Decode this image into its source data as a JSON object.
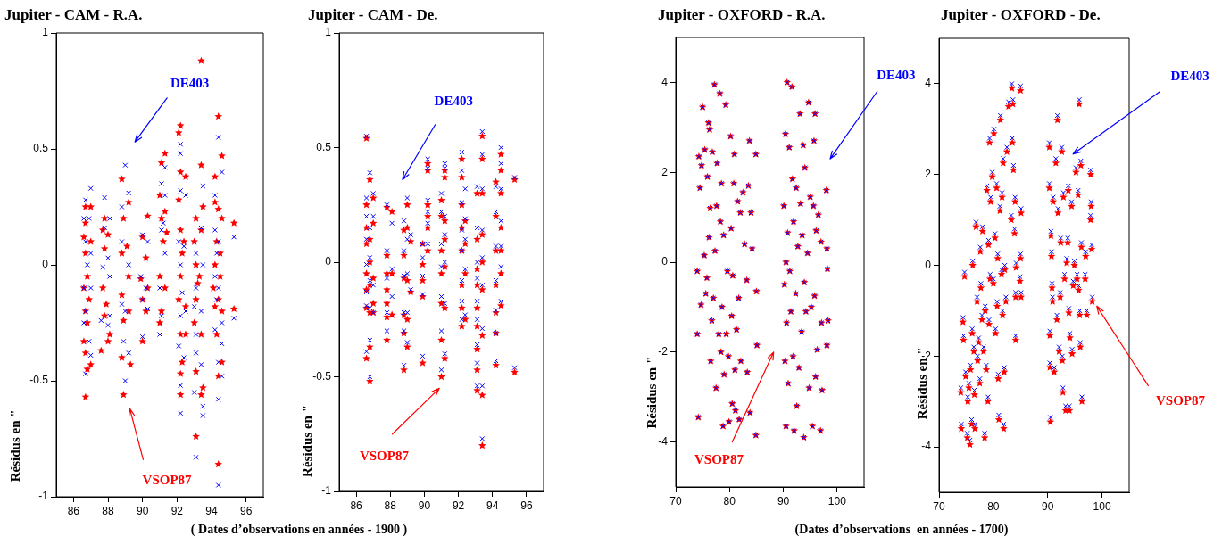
{
  "chart_data": [
    {
      "type": "scatter",
      "title": "Jupiter - CAM - R.A.",
      "ylabel": "Résidus en \"",
      "xlabel": "( Dates d’observations en années - 1900 )",
      "xlim": [
        85,
        97
      ],
      "xticks": [
        86,
        88,
        90,
        92,
        94,
        96
      ],
      "ylim": [
        -1,
        1
      ],
      "yticks": [
        -1,
        -0.5,
        0,
        0.5,
        1
      ],
      "grid": false,
      "legend": false,
      "series": [
        {
          "name": "DE403",
          "color": "#0000ff",
          "marker": "cross",
          "x": [
            86.7,
            86.6,
            86.7,
            86.8,
            86.6,
            86.7,
            86.6,
            86.7,
            87.0,
            86.9,
            87.0,
            87.0,
            86.9,
            87.0,
            87.8,
            87.8,
            87.7,
            87.6,
            88.1,
            88.0,
            88.1,
            88.1,
            88.0,
            88.8,
            88.8,
            88.8,
            88.9,
            89.0,
            89.0,
            89.0,
            89.2,
            89.2,
            89.2,
            90.0,
            89.9,
            90.0,
            90.0,
            90.3,
            90.2,
            90.3,
            91.1,
            91.1,
            91.0,
            91.1,
            91.0,
            91.3,
            91.3,
            91.2,
            91.3,
            92.2,
            92.2,
            92.2,
            92.1,
            92.2,
            92.3,
            92.2,
            92.1,
            92.2,
            92.2,
            92.5,
            92.4,
            92.5,
            92.4,
            93.1,
            93.1,
            93.0,
            93.1,
            93.1,
            93.0,
            93.1,
            93.5,
            93.4,
            93.5,
            93.4,
            93.4,
            93.5,
            93.5,
            94.2,
            94.2,
            94.3,
            94.2,
            94.3,
            94.2,
            94.4,
            94.4,
            94.4,
            94.4,
            94.4,
            94.4,
            94.6,
            94.6,
            94.6,
            94.6,
            95.3,
            95.3
          ],
          "values": [
            0.28,
            0.2,
            0.1,
            0.0,
            -0.1,
            -0.2,
            -0.25,
            -0.47,
            0.33,
            0.2,
            0.05,
            -0.1,
            -0.33,
            -0.39,
            0.29,
            0.16,
            -0.01,
            -0.24,
            0.2,
            0.03,
            -0.05,
            -0.22,
            -0.26,
            0.25,
            0.1,
            -0.17,
            -0.33,
            0.43,
            -0.2,
            -0.5,
            0.31,
            0.0,
            -0.38,
            0.13,
            -0.05,
            -0.15,
            -0.31,
            0.1,
            -0.1,
            -0.19,
            0.35,
            0.15,
            -0.1,
            -0.22,
            -0.3,
            0.42,
            0.3,
            0.18,
            0.05,
            0.52,
            0.48,
            0.32,
            0.1,
            0.0,
            -0.12,
            -0.22,
            -0.35,
            -0.52,
            -0.64,
            0.3,
            0.08,
            -0.2,
            -0.4,
            0.05,
            -0.1,
            -0.18,
            -0.3,
            -0.38,
            -0.55,
            -0.83,
            0.34,
            0.16,
            0.0,
            -0.2,
            -0.43,
            -0.61,
            -0.65,
            0.3,
            0.15,
            0.05,
            -0.05,
            -0.15,
            -0.28,
            0.55,
            0.1,
            -0.1,
            -0.42,
            -0.58,
            -0.95,
            0.4,
            -0.25,
            -0.34,
            -0.48,
            0.12,
            -0.23
          ]
        },
        {
          "name": "VSOP87",
          "color": "#ff0000",
          "marker": "star",
          "x": [
            86.7,
            86.7,
            86.6,
            86.7,
            86.8,
            86.6,
            86.7,
            86.8,
            86.6,
            86.7,
            86.8,
            86.7,
            87.0,
            87.0,
            86.9,
            87.0,
            87.8,
            87.7,
            87.8,
            87.7,
            87.9,
            87.8,
            87.6,
            88.0,
            88.1,
            88.0,
            88.8,
            88.9,
            88.8,
            88.8,
            88.9,
            88.8,
            88.9,
            89.2,
            89.1,
            89.2,
            89.2,
            89.3,
            90.0,
            89.9,
            90.0,
            90.0,
            90.3,
            90.2,
            90.3,
            90.2,
            91.1,
            91.0,
            91.1,
            91.2,
            91.0,
            91.1,
            91.0,
            91.3,
            91.3,
            91.4,
            91.3,
            92.2,
            92.1,
            92.2,
            92.1,
            92.2,
            92.3,
            92.2,
            92.1,
            92.2,
            92.3,
            92.2,
            92.2,
            92.5,
            92.4,
            92.5,
            92.5,
            93.1,
            93.0,
            93.1,
            93.2,
            93.1,
            93.0,
            93.1,
            93.1,
            93.4,
            93.4,
            93.5,
            93.4,
            93.3,
            93.4,
            93.5,
            93.4,
            94.2,
            94.2,
            94.3,
            94.2,
            94.1,
            94.2,
            94.3,
            94.4,
            94.4,
            94.5,
            94.4,
            94.4,
            94.4,
            94.6,
            94.6,
            94.5,
            94.6,
            94.6,
            95.3,
            95.3
          ],
          "values": [
            0.25,
            0.18,
            0.12,
            0.05,
            -0.05,
            -0.1,
            -0.2,
            -0.25,
            -0.33,
            -0.38,
            -0.45,
            -0.57,
            0.25,
            0.1,
            -0.15,
            -0.43,
            0.2,
            0.15,
            0.07,
            -0.1,
            -0.17,
            -0.22,
            -0.37,
            0.13,
            -0.3,
            -0.33,
            0.37,
            0.2,
            0.05,
            -0.13,
            -0.24,
            -0.4,
            -0.56,
            0.27,
            0.08,
            -0.05,
            -0.2,
            -0.43,
            0.12,
            -0.06,
            -0.15,
            -0.33,
            0.21,
            0.03,
            -0.1,
            -0.2,
            0.44,
            0.3,
            0.2,
            0.1,
            -0.05,
            -0.2,
            -0.25,
            0.48,
            0.23,
            0.14,
            -0.1,
            0.6,
            0.57,
            0.4,
            0.28,
            0.15,
            0.05,
            -0.05,
            -0.15,
            -0.3,
            -0.42,
            -0.47,
            -0.56,
            0.38,
            0.1,
            -0.18,
            -0.3,
            0.2,
            0.1,
            0.0,
            -0.08,
            -0.15,
            -0.25,
            -0.46,
            -0.74,
            0.88,
            0.43,
            0.25,
            0.15,
            -0.05,
            -0.3,
            -0.53,
            -0.56,
            0.38,
            0.27,
            0.1,
            0.0,
            -0.1,
            -0.18,
            -0.3,
            0.64,
            0.24,
            0.05,
            -0.15,
            -0.48,
            -0.86,
            0.47,
            0.2,
            -0.05,
            -0.2,
            -0.42,
            0.18,
            -0.19
          ]
        }
      ]
    },
    {
      "type": "scatter",
      "title": "Jupiter - CAM - De.",
      "ylabel": "Résidus en \"",
      "xlim": [
        85,
        97
      ],
      "xticks": [
        86,
        88,
        90,
        92,
        94,
        96
      ],
      "ylim": [
        -1,
        1
      ],
      "yticks": [
        -1,
        -0.5,
        0,
        0.5,
        1
      ],
      "grid": false,
      "legend": false,
      "series": [
        {
          "name": "DE403",
          "color": "#0000ff",
          "marker": "cross",
          "x": [
            86.6,
            86.6,
            86.6,
            86.6,
            86.6,
            86.6,
            86.6,
            86.6,
            86.8,
            86.8,
            86.8,
            86.8,
            86.8,
            86.8,
            86.8,
            87.0,
            87.0,
            87.0,
            87.0,
            87.8,
            87.8,
            87.8,
            87.8,
            87.8,
            88.1,
            88.1,
            88.1,
            88.8,
            88.8,
            88.8,
            88.8,
            88.8,
            88.8,
            89.0,
            89.0,
            89.0,
            89.0,
            89.0,
            89.2,
            89.2,
            89.9,
            89.9,
            89.9,
            89.9,
            89.9,
            90.2,
            90.2,
            90.2,
            90.2,
            90.2,
            90.2,
            91.0,
            91.0,
            91.0,
            91.0,
            91.0,
            91.0,
            91.0,
            91.2,
            91.2,
            91.2,
            91.2,
            91.2,
            91.2,
            91.2,
            92.2,
            92.2,
            92.2,
            92.2,
            92.2,
            92.2,
            92.2,
            92.2,
            92.4,
            92.4,
            92.4,
            92.4,
            92.4,
            93.1,
            93.1,
            93.1,
            93.1,
            93.1,
            93.1,
            93.1,
            93.1,
            93.1,
            93.4,
            93.4,
            93.4,
            93.4,
            93.4,
            93.4,
            93.4,
            93.4,
            93.4,
            94.2,
            94.2,
            94.2,
            94.2,
            94.2,
            94.2,
            94.2,
            94.5,
            94.5,
            94.5,
            94.5,
            94.5,
            94.5,
            94.5,
            95.3,
            95.3
          ],
          "values": [
            0.55,
            0.28,
            0.2,
            0.1,
            -0.01,
            -0.13,
            -0.19,
            -0.39,
            0.39,
            0.15,
            0.02,
            -0.08,
            -0.2,
            -0.34,
            -0.5,
            0.3,
            0.2,
            -0.1,
            -0.22,
            0.25,
            0.05,
            -0.07,
            -0.22,
            -0.3,
            0.17,
            -0.03,
            -0.15,
            0.18,
            0.05,
            -0.06,
            -0.22,
            -0.3,
            -0.45,
            0.28,
            0.1,
            -0.05,
            -0.22,
            -0.35,
            0.12,
            -0.12,
            0.08,
            0.02,
            -0.06,
            -0.14,
            -0.41,
            0.45,
            0.41,
            0.27,
            0.22,
            0.08,
            0.17,
            0.3,
            0.22,
            0.08,
            -0.02,
            -0.15,
            -0.3,
            -0.47,
            0.43,
            0.41,
            0.2,
            0.12,
            0.0,
            -0.18,
            -0.4,
            0.48,
            0.4,
            0.26,
            0.14,
            0.05,
            -0.08,
            -0.17,
            -0.25,
            0.32,
            0.19,
            0.1,
            -0.03,
            -0.23,
            0.33,
            0.15,
            0.0,
            -0.07,
            -0.17,
            -0.25,
            -0.36,
            -0.44,
            -0.54,
            0.57,
            0.47,
            0.32,
            0.14,
            0.02,
            -0.1,
            -0.29,
            -0.54,
            -0.77,
            0.33,
            0.22,
            0.07,
            -0.08,
            -0.21,
            -0.31,
            -0.43,
            0.5,
            0.43,
            0.32,
            0.18,
            0.07,
            -0.02,
            -0.17,
            0.37,
            -0.46
          ]
        },
        {
          "name": "VSOP87",
          "color": "#ff0000",
          "marker": "star",
          "x": [
            86.6,
            86.6,
            86.6,
            86.6,
            86.6,
            86.6,
            86.6,
            86.6,
            86.8,
            86.8,
            86.8,
            86.8,
            86.8,
            86.8,
            86.8,
            87.0,
            87.0,
            87.0,
            87.0,
            87.0,
            87.8,
            87.8,
            87.8,
            87.8,
            87.8,
            87.8,
            87.8,
            88.1,
            88.1,
            88.1,
            88.8,
            88.8,
            88.8,
            88.8,
            88.8,
            88.8,
            89.0,
            89.0,
            89.0,
            89.0,
            89.0,
            89.2,
            89.2,
            89.9,
            89.9,
            89.9,
            89.9,
            89.9,
            90.2,
            90.2,
            90.2,
            90.2,
            90.2,
            90.2,
            91.0,
            91.0,
            91.0,
            91.0,
            91.0,
            91.0,
            91.0,
            91.2,
            91.2,
            91.2,
            91.2,
            91.2,
            91.2,
            91.2,
            92.2,
            92.2,
            92.2,
            92.2,
            92.2,
            92.2,
            92.2,
            92.2,
            92.4,
            92.4,
            92.4,
            92.4,
            93.1,
            93.1,
            93.1,
            93.1,
            93.1,
            93.1,
            93.1,
            93.1,
            93.1,
            93.4,
            93.4,
            93.4,
            93.4,
            93.4,
            93.4,
            93.4,
            93.4,
            93.4,
            94.2,
            94.2,
            94.2,
            94.2,
            94.2,
            94.2,
            94.2,
            94.5,
            94.5,
            94.5,
            94.5,
            94.5,
            94.5,
            94.5,
            95.3,
            95.3
          ],
          "values": [
            0.54,
            0.25,
            0.15,
            0.08,
            -0.05,
            -0.12,
            -0.2,
            -0.42,
            0.36,
            0.1,
            0.0,
            -0.1,
            -0.22,
            -0.37,
            -0.52,
            0.28,
            0.17,
            -0.07,
            -0.18,
            -0.22,
            0.24,
            0.03,
            -0.05,
            -0.12,
            -0.18,
            -0.24,
            -0.34,
            0.22,
            -0.05,
            -0.23,
            0.14,
            0.03,
            -0.07,
            -0.23,
            -0.31,
            -0.47,
            0.25,
            0.15,
            -0.08,
            -0.25,
            -0.37,
            0.09,
            -0.13,
            0.08,
            -0.01,
            -0.08,
            -0.15,
            -0.44,
            0.43,
            0.4,
            0.25,
            0.2,
            0.05,
            0.15,
            0.27,
            0.2,
            0.05,
            -0.05,
            -0.18,
            -0.34,
            -0.5,
            0.4,
            0.37,
            0.18,
            0.1,
            -0.02,
            -0.2,
            -0.42,
            0.45,
            0.37,
            0.25,
            0.15,
            0.05,
            -0.1,
            -0.2,
            -0.28,
            0.18,
            0.08,
            -0.05,
            -0.25,
            0.3,
            0.1,
            -0.03,
            -0.1,
            -0.2,
            -0.28,
            -0.38,
            -0.47,
            -0.56,
            0.55,
            0.45,
            0.3,
            0.12,
            0.0,
            -0.12,
            -0.32,
            -0.58,
            -0.8,
            0.35,
            0.2,
            0.05,
            -0.1,
            -0.22,
            -0.31,
            -0.45,
            0.47,
            0.4,
            0.3,
            0.15,
            0.05,
            -0.05,
            -0.19,
            0.36,
            -0.48
          ]
        }
      ]
    },
    {
      "type": "scatter",
      "title": "Jupiter - OXFORD - R.A.",
      "ylabel": "Résidus en \"",
      "xlabel": "(Dates d’observations  en années - 1700)",
      "xlim": [
        70,
        105
      ],
      "xticks": [
        70,
        80,
        90,
        100
      ],
      "ylim": [
        -5,
        5
      ],
      "yticks": [
        -4,
        -2,
        0,
        2,
        4
      ],
      "grid": false,
      "legend": false,
      "series": [
        {
          "name": "DE403",
          "color": "#0000ff",
          "marker": "cross",
          "x": [
            74.0,
            74.0,
            74.2,
            74.3,
            74.5,
            74.7,
            74.8,
            75.0,
            75.3,
            75.4,
            75.6,
            75.8,
            75.9,
            76.1,
            76.2,
            76.3,
            76.4,
            76.5,
            76.7,
            76.8,
            77.0,
            77.2,
            77.3,
            77.5,
            77.6,
            77.7,
            78.0,
            78.2,
            78.3,
            78.4,
            78.5,
            78.6,
            78.8,
            78.9,
            79.0,
            79.3,
            79.4,
            79.6,
            79.8,
            79.9,
            80.2,
            80.3,
            80.4,
            80.5,
            80.6,
            80.8,
            80.9,
            81.0,
            81.1,
            81.3,
            81.5,
            81.7,
            81.8,
            82.0,
            82.1,
            82.5,
            82.8,
            83.2,
            83.3,
            83.5,
            83.7,
            83.8,
            84.0,
            84.2,
            84.9,
            85.0,
            85.1,
            84.9,
            90.1,
            90.2,
            90.3,
            90.4,
            90.5,
            90.5,
            90.6,
            90.7,
            90.8,
            90.9,
            91.1,
            91.2,
            91.4,
            91.6,
            91.7,
            91.8,
            91.9,
            92.0,
            92.3,
            92.4,
            92.5,
            92.7,
            92.9,
            93.1,
            93.2,
            93.4,
            93.5,
            93.7,
            93.8,
            93.9,
            94.0,
            94.2,
            94.5,
            94.7,
            94.8,
            95.0,
            95.2,
            95.4,
            95.6,
            95.7,
            95.8,
            95.9,
            96.0,
            96.1,
            96.3,
            96.5,
            96.9,
            97.0,
            97.1,
            97.2,
            98.0,
            98.1,
            98.2,
            98.3,
            98.1
          ],
          "values": [
            -0.2,
            -1.6,
            -3.45,
            2.35,
            1.65,
            -0.95,
            2.15,
            3.45,
            0.15,
            2.5,
            -0.7,
            -0.35,
            1.9,
            3.1,
            0.55,
            2.95,
            1.2,
            -2.2,
            -1.3,
            2.45,
            -0.8,
            3.95,
            0.25,
            -2.8,
            1.25,
            2.2,
            -1.6,
            3.75,
            0.9,
            -2.0,
            1.75,
            -1.0,
            -3.65,
            0.6,
            -2.5,
            3.5,
            -1.6,
            -0.2,
            -2.1,
            -3.55,
            2.8,
            0.75,
            -1.2,
            -3.15,
            -0.3,
            1.75,
            2.4,
            -2.4,
            -3.3,
            -1.5,
            1.35,
            -0.8,
            -3.5,
            1.1,
            -2.2,
            1.55,
            0.4,
            -0.4,
            -2.45,
            1.7,
            2.7,
            -3.35,
            1.1,
            0.3,
            2.4,
            -0.65,
            -1.85,
            -3.85,
            1.25,
            -0.5,
            -2.2,
            2.85,
            0.0,
            -3.65,
            -1.35,
            4.0,
            0.65,
            -2.7,
            2.55,
            -0.2,
            -1.1,
            3.9,
            1.85,
            -2.1,
            0.9,
            -3.75,
            -0.7,
            1.65,
            -3.2,
            0.35,
            -2.35,
            3.3,
            1.3,
            -1.55,
            0.6,
            2.6,
            -3.9,
            -0.45,
            2.1,
            -1.1,
            0.2,
            3.55,
            -2.8,
            1.45,
            -1.0,
            -3.65,
            1.25,
            2.7,
            -0.75,
            3.3,
            -2.55,
            0.7,
            -1.95,
            1.05,
            -3.75,
            0.45,
            -1.35,
            -2.85,
            1.6,
            0.3,
            -0.15,
            -1.3,
            -1.85
          ]
        },
        {
          "name": "VSOP87",
          "color": "#ff0000",
          "marker": "star",
          "x": [
            74.0,
            74.0,
            74.2,
            74.3,
            74.5,
            74.7,
            74.8,
            75.0,
            75.3,
            75.4,
            75.6,
            75.8,
            75.9,
            76.1,
            76.2,
            76.3,
            76.4,
            76.5,
            76.7,
            76.8,
            77.0,
            77.2,
            77.3,
            77.5,
            77.6,
            77.7,
            78.0,
            78.2,
            78.3,
            78.4,
            78.5,
            78.6,
            78.8,
            78.9,
            79.0,
            79.3,
            79.4,
            79.6,
            79.8,
            79.9,
            80.2,
            80.3,
            80.4,
            80.5,
            80.6,
            80.8,
            80.9,
            81.0,
            81.1,
            81.3,
            81.5,
            81.7,
            81.8,
            82.0,
            82.1,
            82.5,
            82.8,
            83.2,
            83.3,
            83.5,
            83.7,
            83.8,
            84.0,
            84.2,
            84.9,
            85.0,
            85.1,
            84.9,
            90.1,
            90.2,
            90.3,
            90.4,
            90.5,
            90.5,
            90.6,
            90.7,
            90.8,
            90.9,
            91.1,
            91.2,
            91.4,
            91.6,
            91.7,
            91.8,
            91.9,
            92.0,
            92.3,
            92.4,
            92.5,
            92.7,
            92.9,
            93.1,
            93.2,
            93.4,
            93.5,
            93.7,
            93.8,
            93.9,
            94.0,
            94.2,
            94.5,
            94.7,
            94.8,
            95.0,
            95.2,
            95.4,
            95.6,
            95.7,
            95.8,
            95.9,
            96.0,
            96.1,
            96.3,
            96.5,
            96.9,
            97.0,
            97.1,
            97.2,
            98.0,
            98.1,
            98.2,
            98.3,
            98.1
          ],
          "values": [
            -0.2,
            -1.6,
            -3.45,
            2.35,
            1.65,
            -0.95,
            2.15,
            3.45,
            0.15,
            2.5,
            -0.7,
            -0.35,
            1.9,
            3.1,
            0.55,
            2.95,
            1.2,
            -2.2,
            -1.3,
            2.45,
            -0.8,
            3.95,
            0.25,
            -2.8,
            1.25,
            2.2,
            -1.6,
            3.75,
            0.9,
            -2.0,
            1.75,
            -1.0,
            -3.65,
            0.6,
            -2.5,
            3.5,
            -1.6,
            -0.2,
            -2.1,
            -3.55,
            2.8,
            0.75,
            -1.2,
            -3.15,
            -0.3,
            1.75,
            2.4,
            -2.4,
            -3.3,
            -1.5,
            1.35,
            -0.8,
            -3.5,
            1.1,
            -2.2,
            1.55,
            0.4,
            -0.4,
            -2.45,
            1.7,
            2.7,
            -3.35,
            1.1,
            0.3,
            2.4,
            -0.65,
            -1.85,
            -3.85,
            1.25,
            -0.5,
            -2.2,
            2.85,
            0.0,
            -3.65,
            -1.35,
            4.0,
            0.65,
            -2.7,
            2.55,
            -0.2,
            -1.1,
            3.9,
            1.85,
            -2.1,
            0.9,
            -3.75,
            -0.7,
            1.65,
            -3.2,
            0.35,
            -2.35,
            3.3,
            1.3,
            -1.55,
            0.6,
            2.6,
            -3.9,
            -0.45,
            2.1,
            -1.1,
            0.2,
            3.55,
            -2.8,
            1.45,
            -1.0,
            -3.65,
            1.25,
            2.7,
            -0.75,
            3.3,
            -2.55,
            0.7,
            -1.95,
            1.05,
            -3.75,
            0.45,
            -1.35,
            -2.85,
            1.6,
            0.3,
            -0.15,
            -1.3,
            -1.85
          ]
        }
      ]
    },
    {
      "type": "scatter",
      "title": "Jupiter - OXFORD - De.",
      "ylabel": "Résidus en \"",
      "xlim": [
        70,
        105
      ],
      "xticks": [
        70,
        80,
        90,
        100
      ],
      "ylim": [
        -5,
        5
      ],
      "yticks": [
        -4,
        -2,
        0,
        2,
        4
      ],
      "grid": false,
      "legend": false,
      "series": [
        {
          "name": "DE403",
          "color": "#0000ff",
          "marker": "cross",
          "x": [
            74.0,
            74.1,
            74.4,
            74.5,
            74.7,
            74.9,
            75.2,
            75.3,
            75.5,
            75.7,
            75.8,
            76.0,
            76.1,
            76.2,
            76.4,
            76.5,
            76.6,
            76.8,
            77.0,
            77.1,
            77.3,
            77.5,
            77.6,
            77.7,
            77.9,
            78.0,
            78.2,
            78.4,
            78.5,
            78.7,
            78.8,
            79.0,
            79.1,
            79.2,
            79.3,
            79.4,
            79.5,
            79.8,
            80.0,
            80.1,
            80.3,
            80.4,
            80.6,
            80.7,
            80.8,
            80.9,
            81.0,
            81.2,
            81.3,
            81.5,
            81.6,
            81.7,
            81.8,
            81.9,
            82.0,
            82.1,
            82.3,
            82.5,
            82.8,
            83.3,
            83.4,
            83.5,
            83.6,
            83.7,
            83.9,
            84.0,
            84.1,
            84.2,
            84.1,
            85.0,
            85.1,
            85.0,
            85.1,
            84.9,
            90.3,
            90.3,
            90.4,
            90.4,
            90.5,
            90.6,
            90.7,
            90.8,
            90.9,
            91.0,
            91.2,
            91.5,
            91.7,
            91.8,
            91.9,
            92.1,
            92.3,
            92.4,
            92.6,
            92.7,
            92.8,
            92.9,
            93.1,
            93.3,
            93.5,
            93.7,
            93.8,
            93.9,
            94.0,
            94.1,
            94.4,
            94.5,
            94.7,
            94.9,
            95.2,
            95.4,
            95.6,
            95.7,
            95.8,
            95.9,
            96.0,
            96.1,
            96.2,
            96.3,
            96.9,
            97.0,
            97.2,
            97.9,
            98.0,
            98.1,
            98.2,
            97.9
          ],
          "values": [
            -2.7,
            -3.5,
            -1.15,
            -1.55,
            -0.15,
            -2.35,
            -3.7,
            -2.9,
            -2.6,
            -3.85,
            -2.2,
            -3.4,
            -1.4,
            0.1,
            -1.8,
            -2.75,
            -3.5,
            0.95,
            -0.7,
            -2.0,
            -1.6,
            -2.5,
            0.4,
            -0.4,
            -1.1,
            0.85,
            -1.8,
            -3.7,
            -0.9,
            -2.2,
            1.75,
            -2.9,
            0.55,
            -1.2,
            2.8,
            -0.2,
            1.5,
            2.05,
            -0.3,
            3.0,
            0.7,
            -1.4,
            1.8,
            -0.8,
            0.25,
            -2.4,
            -3.3,
            1.3,
            3.3,
            -0.1,
            1.6,
            -1.0,
            2.35,
            -3.5,
            -2.25,
            0.0,
            -0.7,
            2.6,
            3.6,
            1.1,
            4.0,
            2.8,
            3.65,
            2.2,
            0.8,
            1.5,
            -1.55,
            0.05,
            -0.6,
            3.95,
            1.25,
            0.25,
            -0.6,
            -0.25,
            2.7,
            1.8,
            -1.45,
            -2.15,
            -3.35,
            0.75,
            0.3,
            -0.4,
            -0.7,
            1.5,
            -2.25,
            2.35,
            -1.1,
            3.3,
            1.25,
            -1.8,
            -0.6,
            0.6,
            2.6,
            -2.0,
            -2.7,
            1.6,
            -0.2,
            -3.1,
            0.15,
            0.6,
            1.75,
            -0.95,
            -3.1,
            -1.5,
            1.4,
            -1.85,
            -0.35,
            0.1,
            2.15,
            -0.2,
            1.65,
            -0.45,
            3.65,
            -1.0,
            -1.7,
            2.3,
            0.5,
            -2.9,
            -0.2,
            0.3,
            -1.0,
            2.1,
            1.4,
            0.45,
            -0.7,
            1.1
          ]
        },
        {
          "name": "VSOP87",
          "color": "#ff0000",
          "marker": "star",
          "x": [
            74.0,
            74.1,
            74.4,
            74.5,
            74.7,
            74.9,
            75.2,
            75.3,
            75.5,
            75.7,
            75.8,
            76.0,
            76.1,
            76.2,
            76.4,
            76.5,
            76.6,
            76.8,
            77.0,
            77.1,
            77.3,
            77.5,
            77.6,
            77.7,
            77.9,
            78.0,
            78.2,
            78.4,
            78.5,
            78.7,
            78.8,
            79.0,
            79.1,
            79.2,
            79.3,
            79.4,
            79.5,
            79.8,
            80.0,
            80.1,
            80.3,
            80.4,
            80.6,
            80.7,
            80.8,
            80.9,
            81.0,
            81.2,
            81.3,
            81.5,
            81.6,
            81.7,
            81.8,
            81.9,
            82.0,
            82.1,
            82.3,
            82.5,
            82.8,
            83.3,
            83.4,
            83.5,
            83.6,
            83.7,
            83.9,
            84.0,
            84.1,
            84.2,
            84.1,
            85.0,
            85.1,
            85.0,
            85.1,
            84.9,
            90.3,
            90.3,
            90.4,
            90.4,
            90.5,
            90.6,
            90.7,
            90.8,
            90.9,
            91.0,
            91.2,
            91.5,
            91.7,
            91.8,
            91.9,
            92.1,
            92.3,
            92.4,
            92.6,
            92.7,
            92.8,
            92.9,
            93.1,
            93.3,
            93.5,
            93.7,
            93.8,
            93.9,
            94.0,
            94.1,
            94.4,
            94.5,
            94.7,
            94.9,
            95.2,
            95.4,
            95.6,
            95.7,
            95.8,
            95.9,
            96.0,
            96.1,
            96.2,
            96.3,
            96.9,
            97.0,
            97.2,
            97.9,
            98.0,
            98.1,
            98.2,
            97.9
          ],
          "values": [
            -2.8,
            -3.6,
            -1.25,
            -1.65,
            -0.25,
            -2.45,
            -3.8,
            -3.0,
            -2.7,
            -3.95,
            -2.3,
            -3.5,
            -1.5,
            0.0,
            -1.9,
            -2.85,
            -3.6,
            0.85,
            -0.8,
            -2.1,
            -1.7,
            -2.6,
            0.3,
            -0.5,
            -1.2,
            0.75,
            -1.9,
            -3.8,
            -1.0,
            -2.3,
            1.65,
            -3.0,
            0.45,
            -1.3,
            2.7,
            -0.3,
            1.4,
            1.95,
            -0.4,
            2.9,
            0.6,
            -1.5,
            1.7,
            -0.9,
            0.15,
            -2.5,
            -3.4,
            1.2,
            3.2,
            -0.2,
            1.5,
            -1.1,
            2.25,
            -3.6,
            -2.35,
            -0.1,
            -0.8,
            2.5,
            3.5,
            1.0,
            3.9,
            2.7,
            3.55,
            2.1,
            0.7,
            1.4,
            -1.65,
            -0.05,
            -0.7,
            3.85,
            1.15,
            0.15,
            -0.7,
            -0.35,
            2.6,
            1.7,
            -1.55,
            -2.25,
            -3.45,
            0.65,
            0.2,
            -0.5,
            -0.8,
            1.4,
            -2.35,
            2.25,
            -1.2,
            3.2,
            1.15,
            -1.9,
            -0.7,
            0.5,
            2.5,
            -2.1,
            -2.8,
            1.5,
            -0.3,
            -3.2,
            0.05,
            0.5,
            1.65,
            -1.05,
            -3.2,
            -1.6,
            1.3,
            -1.95,
            -0.45,
            0.0,
            2.05,
            -0.3,
            1.55,
            -0.55,
            3.55,
            -1.1,
            -1.8,
            2.2,
            0.4,
            -3.0,
            -0.3,
            0.2,
            -1.1,
            2.0,
            1.3,
            0.35,
            -0.8,
            1.0
          ]
        }
      ]
    }
  ]
}
